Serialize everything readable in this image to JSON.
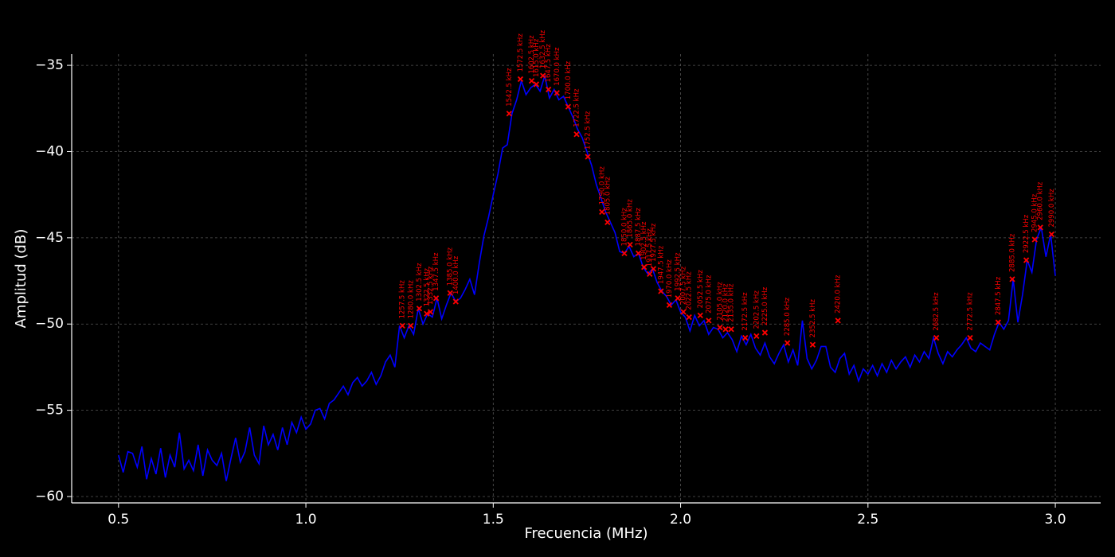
{
  "chart_data": {
    "type": "line",
    "xlabel": "Frecuencia (MHz)",
    "ylabel": "Amplitud (dB)",
    "xlim": [
      0.375,
      3.121
    ],
    "ylim": [
      -60.37,
      -34.35
    ],
    "grid": true,
    "xticks": [
      0.5,
      {
        "value": 1,
        "label": "1.0"
      },
      1.5,
      {
        "value": 2,
        "label": "2.0"
      },
      2.5,
      {
        "value": 3,
        "label": "3.0"
      }
    ],
    "yticks": [
      {
        "value": -60,
        "label": "−60"
      },
      {
        "value": -55,
        "label": "−55"
      },
      {
        "value": -50,
        "label": "−50"
      },
      {
        "value": -45,
        "label": "−45"
      },
      {
        "value": -40,
        "label": "−40"
      },
      {
        "value": -35,
        "label": "−35"
      }
    ],
    "series": [
      {
        "color": "#0000ff",
        "x": [
          0.5,
          0.5125,
          0.525,
          0.5375,
          0.55,
          0.5625,
          0.575,
          0.5875,
          0.6,
          0.6125,
          0.625,
          0.6375,
          0.65,
          0.6625,
          0.675,
          0.6875,
          0.7,
          0.7125,
          0.725,
          0.7375,
          0.75,
          0.7625,
          0.775,
          0.7875,
          0.8,
          0.8125,
          0.825,
          0.8375,
          0.85,
          0.8625,
          0.875,
          0.8875,
          0.9,
          0.9125,
          0.925,
          0.9375,
          0.95,
          0.9625,
          0.975,
          0.9875,
          1,
          1.0125,
          1.025,
          1.0375,
          1.05,
          1.0625,
          1.075,
          1.0875,
          1.1,
          1.1125,
          1.125,
          1.1375,
          1.15,
          1.1625,
          1.175,
          1.1875,
          1.2,
          1.2125,
          1.225,
          1.2375,
          1.25,
          1.2625,
          1.275,
          1.2875,
          1.3,
          1.3125,
          1.325,
          1.3375,
          1.35,
          1.3625,
          1.375,
          1.3875,
          1.4,
          1.4125,
          1.425,
          1.4375,
          1.45,
          1.4625,
          1.475,
          1.4875,
          1.5,
          1.5125,
          1.525,
          1.5375,
          1.55,
          1.5625,
          1.575,
          1.5875,
          1.6,
          1.6125,
          1.625,
          1.6375,
          1.65,
          1.6625,
          1.675,
          1.6875,
          1.7,
          1.7125,
          1.725,
          1.7375,
          1.75,
          1.7625,
          1.775,
          1.7875,
          1.8,
          1.8125,
          1.825,
          1.8375,
          1.85,
          1.8625,
          1.875,
          1.8875,
          1.9,
          1.9125,
          1.925,
          1.9375,
          1.95,
          1.9625,
          1.975,
          1.9875,
          2,
          2.0125,
          2.025,
          2.0375,
          2.05,
          2.0625,
          2.075,
          2.0875,
          2.1,
          2.1125,
          2.125,
          2.1375,
          2.15,
          2.1625,
          2.175,
          2.1875,
          2.2,
          2.2125,
          2.225,
          2.2375,
          2.25,
          2.2625,
          2.275,
          2.2875,
          2.3,
          2.3125,
          2.325,
          2.3375,
          2.35,
          2.3625,
          2.375,
          2.3875,
          2.4,
          2.4125,
          2.425,
          2.4375,
          2.45,
          2.4625,
          2.475,
          2.4875,
          2.5,
          2.5125,
          2.525,
          2.5375,
          2.55,
          2.5625,
          2.575,
          2.5875,
          2.6,
          2.6125,
          2.625,
          2.6375,
          2.65,
          2.6625,
          2.675,
          2.6875,
          2.7,
          2.7125,
          2.725,
          2.7375,
          2.75,
          2.7625,
          2.775,
          2.7875,
          2.8,
          2.8125,
          2.825,
          2.8375,
          2.85,
          2.8625,
          2.875,
          2.8875,
          2.9,
          2.9125,
          2.925,
          2.9375,
          2.95,
          2.9625,
          2.975,
          2.9875,
          3
        ],
        "values": [
          -57.6,
          -58.6,
          -57.4,
          -57.5,
          -58.3,
          -57.1,
          -59.0,
          -57.8,
          -58.7,
          -57.2,
          -58.9,
          -57.6,
          -58.3,
          -56.3,
          -58.4,
          -57.9,
          -58.5,
          -57.0,
          -58.8,
          -57.3,
          -57.9,
          -58.2,
          -57.5,
          -59.1,
          -57.8,
          -56.6,
          -58.0,
          -57.4,
          -56.0,
          -57.6,
          -58.1,
          -55.9,
          -57.0,
          -56.4,
          -57.3,
          -56.0,
          -57.0,
          -55.7,
          -56.3,
          -55.4,
          -56.1,
          -55.8,
          -55.0,
          -54.9,
          -55.5,
          -54.6,
          -54.4,
          -54.0,
          -53.6,
          -54.1,
          -53.4,
          -53.1,
          -53.6,
          -53.3,
          -52.8,
          -53.5,
          -53.0,
          -52.2,
          -51.8,
          -52.5,
          -50.1,
          -50.8,
          -50.1,
          -50.6,
          -49.1,
          -50.0,
          -49.4,
          -49.6,
          -48.5,
          -49.7,
          -48.9,
          -48.2,
          -48.7,
          -48.5,
          -48.0,
          -47.4,
          -48.3,
          -46.5,
          -44.9,
          -43.8,
          -42.5,
          -41.3,
          -39.8,
          -39.6,
          -37.8,
          -37.0,
          -35.9,
          -36.7,
          -36.3,
          -36.1,
          -36.5,
          -35.6,
          -36.9,
          -36.4,
          -37.0,
          -36.8,
          -37.4,
          -38.0,
          -38.7,
          -39.2,
          -40.0,
          -40.8,
          -41.9,
          -42.7,
          -43.5,
          -44.1,
          -44.7,
          -45.8,
          -45.9,
          -45.5,
          -46.1,
          -45.9,
          -46.7,
          -47.1,
          -46.8,
          -47.6,
          -48.1,
          -48.4,
          -48.9,
          -48.6,
          -49.3,
          -49.6,
          -50.4,
          -49.5,
          -50.1,
          -49.8,
          -50.6,
          -50.2,
          -50.3,
          -50.8,
          -50.5,
          -50.9,
          -51.6,
          -50.7,
          -51.2,
          -50.6,
          -51.4,
          -51.8,
          -51.1,
          -51.9,
          -52.3,
          -51.7,
          -51.2,
          -52.2,
          -51.5,
          -52.4,
          -49.8,
          -52.0,
          -52.6,
          -52.1,
          -51.3,
          -51.3,
          -52.5,
          -52.8,
          -52.0,
          -51.7,
          -52.9,
          -52.4,
          -53.3,
          -52.6,
          -52.9,
          -52.4,
          -53.0,
          -52.3,
          -52.8,
          -52.1,
          -52.6,
          -52.2,
          -51.9,
          -52.5,
          -51.8,
          -52.2,
          -51.6,
          -52.0,
          -50.8,
          -51.7,
          -52.3,
          -51.6,
          -51.9,
          -51.5,
          -51.2,
          -50.8,
          -51.4,
          -51.6,
          -51.1,
          -51.3,
          -51.5,
          -50.6,
          -49.9,
          -50.3,
          -49.8,
          -47.4,
          -49.9,
          -48.3,
          -46.3,
          -47.0,
          -45.1,
          -44.4,
          -46.1,
          -44.8,
          -47.2
        ]
      }
    ],
    "peaks": {
      "color": "#ff0000",
      "x": [
        1.2575,
        1.28,
        1.3025,
        1.3225,
        1.3325,
        1.3475,
        1.385,
        1.4,
        1.5425,
        1.5725,
        1.6025,
        1.615,
        1.6325,
        1.6475,
        1.67,
        1.7,
        1.7225,
        1.7525,
        1.79,
        1.805,
        1.85,
        1.865,
        1.8875,
        1.9025,
        1.9175,
        1.9275,
        1.9475,
        1.97,
        1.9925,
        2.0075,
        2.0225,
        2.0525,
        2.075,
        2.105,
        2.12,
        2.135,
        2.1725,
        2.2025,
        2.225,
        2.285,
        2.3525,
        2.42,
        2.6825,
        2.7725,
        2.8475,
        2.885,
        2.9225,
        2.945,
        2.96,
        2.99
      ],
      "values": [
        -50.1,
        -50.1,
        -49.1,
        -49.4,
        -49.3,
        -48.5,
        -48.2,
        -48.7,
        -37.8,
        -35.8,
        -35.9,
        -36.1,
        -35.6,
        -36.4,
        -36.6,
        -37.4,
        -39.0,
        -40.3,
        -43.5,
        -44.1,
        -45.9,
        -45.4,
        -45.9,
        -46.7,
        -47.1,
        -46.8,
        -48.1,
        -48.9,
        -48.5,
        -49.3,
        -49.6,
        -49.5,
        -49.8,
        -50.2,
        -50.3,
        -50.3,
        -50.8,
        -50.7,
        -50.5,
        -51.1,
        -51.2,
        -49.8,
        -50.8,
        -50.8,
        -49.9,
        -47.4,
        -46.3,
        -45.1,
        -44.4,
        -44.8
      ],
      "labels": [
        "1257.5 kHz",
        "1280.0 kHz",
        "1302.5 kHz",
        "1322.5 kHz",
        "1332.5 kHz",
        "1347.5 kHz",
        "1385.0 kHz",
        "1400.0 kHz",
        "1542.5 kHz",
        "1572.5 kHz",
        "1602.5 kHz",
        "1615.0 kHz",
        "1632.5 kHz",
        "1647.5 kHz",
        "1670.0 kHz",
        "1700.0 kHz",
        "1722.5 kHz",
        "1752.5 kHz",
        "1790.0 kHz",
        "1805.0 kHz",
        "1850.0 kHz",
        "1865.0 kHz",
        "1887.5 kHz",
        "1902.5 kHz",
        "1917.5 kHz",
        "1927.5 kHz",
        "1947.5 kHz",
        "1970.0 kHz",
        "1992.5 kHz",
        "2007.5 kHz",
        "2022.5 kHz",
        "2052.5 kHz",
        "2075.0 kHz",
        "2105.0 kHz",
        "2120.0 kHz",
        "2135.0 kHz",
        "2172.5 kHz",
        "2202.5 kHz",
        "2225.0 kHz",
        "2285.0 kHz",
        "2352.5 kHz",
        "2420.0 kHz",
        "2682.5 kHz",
        "2772.5 kHz",
        "2847.5 kHz",
        "2885.0 kHz",
        "2922.5 kHz",
        "2945.0 kHz",
        "2960.0 kHz",
        "2990.0 kHz"
      ]
    }
  }
}
